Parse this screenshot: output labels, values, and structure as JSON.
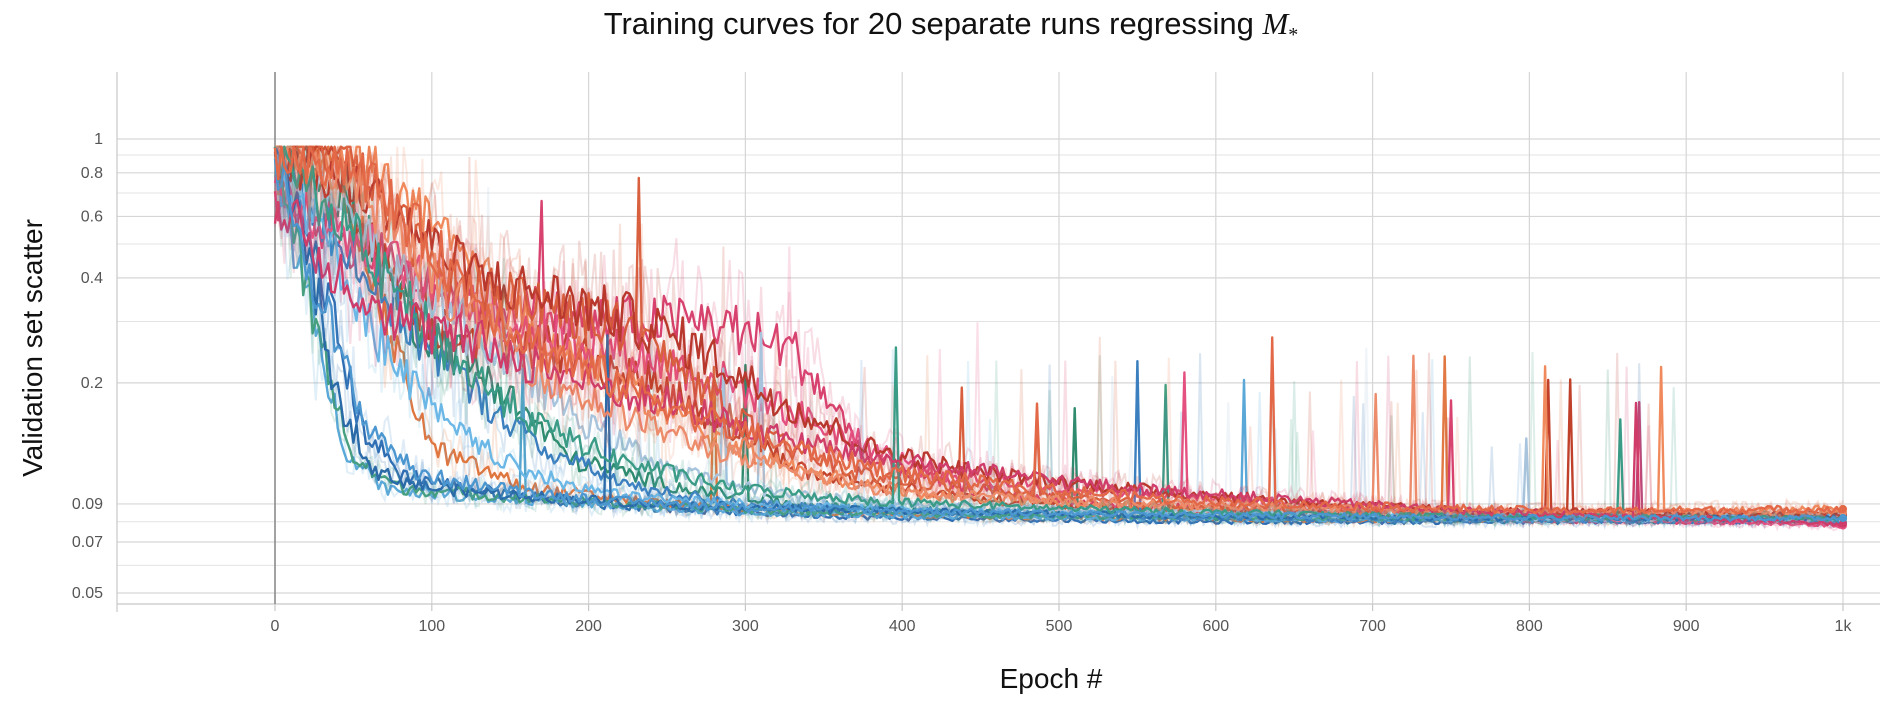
{
  "chart_data": {
    "type": "line",
    "title_prefix": "Training curves for 20 separate runs regressing ",
    "title_symbol": "M",
    "title_symbol_sub": "*",
    "xlabel": "Epoch #",
    "ylabel": "Validation set scatter",
    "xlim": [
      -100,
      1000
    ],
    "ylim": [
      0.045,
      1.6
    ],
    "yscale": "log",
    "x_ticks": [
      {
        "value": 0,
        "label": "0"
      },
      {
        "value": 100,
        "label": "100"
      },
      {
        "value": 200,
        "label": "200"
      },
      {
        "value": 300,
        "label": "300"
      },
      {
        "value": 400,
        "label": "400"
      },
      {
        "value": 500,
        "label": "500"
      },
      {
        "value": 600,
        "label": "600"
      },
      {
        "value": 700,
        "label": "700"
      },
      {
        "value": 800,
        "label": "800"
      },
      {
        "value": 900,
        "label": "900"
      },
      {
        "value": 1000,
        "label": "1k"
      }
    ],
    "y_ticks": [
      {
        "value": 1,
        "label": "1"
      },
      {
        "value": 0.8,
        "label": "0.8"
      },
      {
        "value": 0.6,
        "label": "0.6"
      },
      {
        "value": 0.4,
        "label": "0.4"
      },
      {
        "value": 0.2,
        "label": "0.2"
      },
      {
        "value": 0.09,
        "label": "0.09"
      },
      {
        "value": 0.07,
        "label": "0.07"
      },
      {
        "value": 0.05,
        "label": "0.05"
      }
    ],
    "y_minor_grid": [
      0.9,
      0.7,
      0.5,
      0.3,
      0.08,
      0.06
    ],
    "grid": true,
    "legend": "none",
    "series": [
      {
        "color": "#2f6db3",
        "values": [
          [
            0,
            0.92
          ],
          [
            30,
            0.4
          ],
          [
            55,
            0.15
          ],
          [
            80,
            0.11
          ],
          [
            120,
            0.1
          ],
          [
            200,
            0.09
          ],
          [
            300,
            0.085
          ],
          [
            400,
            0.082
          ],
          [
            500,
            0.081
          ],
          [
            600,
            0.08
          ],
          [
            700,
            0.08
          ],
          [
            800,
            0.08
          ],
          [
            900,
            0.08
          ],
          [
            1000,
            0.08
          ]
        ]
      },
      {
        "color": "#e0763f",
        "values": [
          [
            0,
            0.9
          ],
          [
            40,
            0.9
          ],
          [
            70,
            0.3
          ],
          [
            100,
            0.13
          ],
          [
            160,
            0.1
          ],
          [
            250,
            0.09
          ],
          [
            350,
            0.085
          ],
          [
            450,
            0.083
          ],
          [
            550,
            0.082
          ],
          [
            650,
            0.081
          ],
          [
            800,
            0.081
          ],
          [
            1000,
            0.085
          ]
        ]
      },
      {
        "color": "#2e8b6e",
        "values": [
          [
            0,
            0.92
          ],
          [
            50,
            0.6
          ],
          [
            90,
            0.3
          ],
          [
            140,
            0.2
          ],
          [
            190,
            0.12
          ],
          [
            260,
            0.1
          ],
          [
            330,
            0.09
          ],
          [
            420,
            0.086
          ],
          [
            520,
            0.083
          ],
          [
            640,
            0.082
          ],
          [
            760,
            0.081
          ],
          [
            1000,
            0.081
          ]
        ]
      },
      {
        "color": "#d8426f",
        "values": [
          [
            0,
            0.7
          ],
          [
            50,
            0.5
          ],
          [
            120,
            0.35
          ],
          [
            200,
            0.3
          ],
          [
            280,
            0.3
          ],
          [
            330,
            0.25
          ],
          [
            380,
            0.12
          ],
          [
            440,
            0.1
          ],
          [
            520,
            0.09
          ],
          [
            620,
            0.086
          ],
          [
            720,
            0.083
          ],
          [
            850,
            0.08
          ],
          [
            1000,
            0.08
          ]
        ]
      },
      {
        "color": "#5aa8d8",
        "values": [
          [
            0,
            0.88
          ],
          [
            20,
            0.35
          ],
          [
            45,
            0.13
          ],
          [
            70,
            0.1
          ],
          [
            120,
            0.095
          ],
          [
            200,
            0.09
          ],
          [
            300,
            0.085
          ],
          [
            420,
            0.083
          ],
          [
            540,
            0.082
          ],
          [
            680,
            0.081
          ],
          [
            820,
            0.081
          ],
          [
            1000,
            0.081
          ]
        ]
      },
      {
        "color": "#c0402a",
        "values": [
          [
            0,
            0.93
          ],
          [
            40,
            0.93
          ],
          [
            60,
            0.5
          ],
          [
            100,
            0.3
          ],
          [
            180,
            0.25
          ],
          [
            240,
            0.2
          ],
          [
            290,
            0.15
          ],
          [
            340,
            0.11
          ],
          [
            400,
            0.1
          ],
          [
            480,
            0.09
          ],
          [
            560,
            0.087
          ],
          [
            660,
            0.085
          ],
          [
            780,
            0.083
          ],
          [
            1000,
            0.082
          ]
        ]
      },
      {
        "color": "#f08a5d",
        "values": [
          [
            0,
            0.8
          ],
          [
            60,
            0.85
          ],
          [
            110,
            0.5
          ],
          [
            160,
            0.3
          ],
          [
            220,
            0.2
          ],
          [
            280,
            0.14
          ],
          [
            340,
            0.11
          ],
          [
            420,
            0.095
          ],
          [
            520,
            0.09
          ],
          [
            620,
            0.087
          ],
          [
            720,
            0.085
          ],
          [
            850,
            0.085
          ],
          [
            1000,
            0.087
          ]
        ]
      },
      {
        "color": "#3b7fbf",
        "values": [
          [
            0,
            0.85
          ],
          [
            30,
            0.6
          ],
          [
            70,
            0.35
          ],
          [
            120,
            0.2
          ],
          [
            170,
            0.13
          ],
          [
            230,
            0.1
          ],
          [
            300,
            0.09
          ],
          [
            400,
            0.086
          ],
          [
            500,
            0.084
          ],
          [
            620,
            0.082
          ],
          [
            760,
            0.081
          ],
          [
            1000,
            0.08
          ]
        ]
      },
      {
        "color": "#e4507f",
        "values": [
          [
            0,
            0.75
          ],
          [
            40,
            0.55
          ],
          [
            90,
            0.4
          ],
          [
            150,
            0.3
          ],
          [
            220,
            0.25
          ],
          [
            290,
            0.2
          ],
          [
            350,
            0.15
          ],
          [
            420,
            0.11
          ],
          [
            500,
            0.1
          ],
          [
            580,
            0.095
          ],
          [
            680,
            0.088
          ],
          [
            800,
            0.083
          ],
          [
            1000,
            0.078
          ]
        ]
      },
      {
        "color": "#46a07f",
        "values": [
          [
            0,
            0.92
          ],
          [
            25,
            0.3
          ],
          [
            50,
            0.12
          ],
          [
            80,
            0.1
          ],
          [
            140,
            0.095
          ],
          [
            220,
            0.09
          ],
          [
            320,
            0.086
          ],
          [
            440,
            0.084
          ],
          [
            560,
            0.083
          ],
          [
            700,
            0.082
          ],
          [
            860,
            0.082
          ],
          [
            1000,
            0.082
          ]
        ]
      },
      {
        "color": "#a8c4dc",
        "values": [
          [
            0,
            0.9
          ],
          [
            30,
            0.7
          ],
          [
            80,
            0.4
          ],
          [
            140,
            0.25
          ],
          [
            200,
            0.15
          ],
          [
            260,
            0.11
          ],
          [
            330,
            0.095
          ],
          [
            420,
            0.09
          ],
          [
            520,
            0.086
          ],
          [
            640,
            0.084
          ],
          [
            780,
            0.082
          ],
          [
            1000,
            0.081
          ]
        ]
      },
      {
        "color": "#d9603f",
        "values": [
          [
            0,
            0.92
          ],
          [
            45,
            0.92
          ],
          [
            75,
            0.6
          ],
          [
            110,
            0.4
          ],
          [
            160,
            0.35
          ],
          [
            210,
            0.3
          ],
          [
            260,
            0.22
          ],
          [
            310,
            0.14
          ],
          [
            370,
            0.11
          ],
          [
            440,
            0.1
          ],
          [
            520,
            0.092
          ],
          [
            620,
            0.088
          ],
          [
            740,
            0.085
          ],
          [
            1000,
            0.083
          ]
        ]
      },
      {
        "color": "#6bb7e6",
        "values": [
          [
            0,
            0.88
          ],
          [
            35,
            0.5
          ],
          [
            70,
            0.25
          ],
          [
            110,
            0.15
          ],
          [
            160,
            0.11
          ],
          [
            220,
            0.095
          ],
          [
            300,
            0.09
          ],
          [
            400,
            0.087
          ],
          [
            500,
            0.085
          ],
          [
            620,
            0.084
          ],
          [
            780,
            0.083
          ],
          [
            1000,
            0.083
          ]
        ]
      },
      {
        "color": "#b9382d",
        "values": [
          [
            0,
            0.9
          ],
          [
            60,
            0.7
          ],
          [
            100,
            0.5
          ],
          [
            130,
            0.4
          ],
          [
            180,
            0.35
          ],
          [
            230,
            0.3
          ],
          [
            270,
            0.25
          ],
          [
            320,
            0.18
          ],
          [
            380,
            0.13
          ],
          [
            450,
            0.11
          ],
          [
            540,
            0.1
          ],
          [
            640,
            0.092
          ],
          [
            760,
            0.086
          ],
          [
            1000,
            0.084
          ]
        ]
      },
      {
        "color": "#2a6aa8",
        "values": [
          [
            0,
            0.93
          ],
          [
            20,
            0.5
          ],
          [
            40,
            0.18
          ],
          [
            65,
            0.11
          ],
          [
            100,
            0.1
          ],
          [
            160,
            0.095
          ],
          [
            240,
            0.09
          ],
          [
            340,
            0.087
          ],
          [
            460,
            0.085
          ],
          [
            600,
            0.083
          ],
          [
            760,
            0.082
          ],
          [
            1000,
            0.082
          ]
        ]
      },
      {
        "color": "#ec8c6b",
        "values": [
          [
            0,
            0.86
          ],
          [
            50,
            0.75
          ],
          [
            90,
            0.45
          ],
          [
            130,
            0.3
          ],
          [
            180,
            0.2
          ],
          [
            240,
            0.15
          ],
          [
            300,
            0.12
          ],
          [
            380,
            0.1
          ],
          [
            480,
            0.093
          ],
          [
            600,
            0.089
          ],
          [
            740,
            0.086
          ],
          [
            1000,
            0.085
          ]
        ]
      },
      {
        "color": "#3a9b86",
        "values": [
          [
            0,
            0.9
          ],
          [
            40,
            0.6
          ],
          [
            80,
            0.35
          ],
          [
            120,
            0.22
          ],
          [
            170,
            0.15
          ],
          [
            220,
            0.12
          ],
          [
            290,
            0.1
          ],
          [
            380,
            0.092
          ],
          [
            480,
            0.088
          ],
          [
            600,
            0.085
          ],
          [
            740,
            0.083
          ],
          [
            1000,
            0.082
          ]
        ]
      },
      {
        "color": "#cf3c6a",
        "values": [
          [
            0,
            0.68
          ],
          [
            30,
            0.45
          ],
          [
            80,
            0.3
          ],
          [
            140,
            0.25
          ],
          [
            200,
            0.2
          ],
          [
            260,
            0.17
          ],
          [
            320,
            0.14
          ],
          [
            390,
            0.12
          ],
          [
            460,
            0.11
          ],
          [
            540,
            0.1
          ],
          [
            640,
            0.093
          ],
          [
            760,
            0.086
          ],
          [
            1000,
            0.079
          ]
        ]
      },
      {
        "color": "#4c96d0",
        "values": [
          [
            0,
            0.9
          ],
          [
            25,
            0.4
          ],
          [
            55,
            0.16
          ],
          [
            90,
            0.11
          ],
          [
            140,
            0.1
          ],
          [
            210,
            0.092
          ],
          [
            300,
            0.088
          ],
          [
            410,
            0.086
          ],
          [
            540,
            0.084
          ],
          [
            690,
            0.083
          ],
          [
            860,
            0.082
          ],
          [
            1000,
            0.082
          ]
        ]
      },
      {
        "color": "#e26848",
        "values": [
          [
            0,
            0.91
          ],
          [
            50,
            0.85
          ],
          [
            90,
            0.55
          ],
          [
            130,
            0.35
          ],
          [
            170,
            0.25
          ],
          [
            220,
            0.2
          ],
          [
            270,
            0.16
          ],
          [
            330,
            0.13
          ],
          [
            400,
            0.11
          ],
          [
            480,
            0.1
          ],
          [
            570,
            0.093
          ],
          [
            680,
            0.089
          ],
          [
            820,
            0.086
          ],
          [
            1000,
            0.087
          ]
        ]
      }
    ]
  }
}
